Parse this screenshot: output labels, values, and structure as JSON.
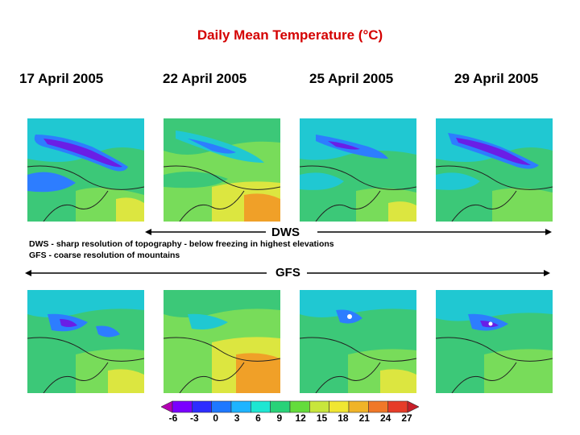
{
  "title": "Daily Mean Temperature (°C)",
  "dates": [
    "17 April 2005",
    "22 April 2005",
    "25 April 2005",
    "29 April 2005"
  ],
  "dws": {
    "label": "DWS",
    "notes": [
      "DWS - sharp resolution of topography - below freezing in highest elevations",
      "GFS - coarse resolution of mountains"
    ]
  },
  "gfs": {
    "label": "GFS"
  },
  "colorbar": {
    "ticks": [
      "-6",
      "-3",
      "0",
      "3",
      "6",
      "9",
      "12",
      "15",
      "18",
      "21",
      "24",
      "27"
    ],
    "colors": [
      "#b400b4",
      "#7a00ff",
      "#2d2dff",
      "#1e78ff",
      "#1eb4ff",
      "#1ee6d2",
      "#28d278",
      "#64dc3c",
      "#c8e63c",
      "#f0e632",
      "#f0b428",
      "#f07828",
      "#e63c28",
      "#c81e28"
    ]
  },
  "palette": {
    "title_color": "#d40000",
    "map_green": "#3cc878",
    "map_lightgreen": "#78dc5a",
    "map_yellow": "#dce640",
    "map_orange": "#f0a028",
    "map_cyan": "#20c8d2",
    "map_blue": "#2d7dff",
    "map_purple": "#6a1ee6"
  }
}
